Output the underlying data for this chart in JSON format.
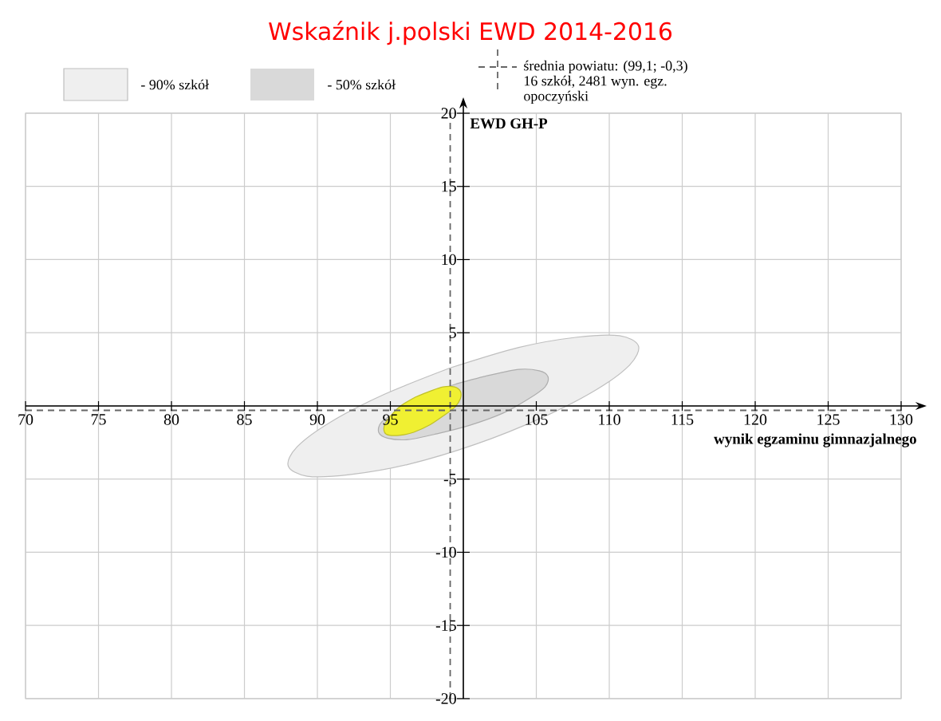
{
  "chart_data": {
    "type": "area",
    "title": "Wskaźnik j.polski EWD 2014-2016",
    "xlabel": "wynik egzaminu gimnazjalnego",
    "ylabel": "EWD GH-P",
    "series": [
      {
        "name": "- 90% szkół",
        "color": "#efefef",
        "x": [
          99.1,
          94.6,
          90.9,
          88.6,
          88.0,
          89.3,
          92.2,
          96.2,
          100.9,
          105.4,
          109.1,
          111.4,
          112.0,
          110.7,
          107.8,
          103.8
        ],
        "values": [
          2.6,
          0.8,
          -1.1,
          -2.8,
          -4.1,
          -4.8,
          -4.7,
          -4.0,
          -2.6,
          -0.8,
          1.1,
          2.8,
          4.1,
          4.8,
          4.7,
          4.0
        ]
      },
      {
        "name": "- 50% szkół",
        "color": "#d9d9d9",
        "x": [
          99.5,
          97.3,
          95.6,
          94.4,
          94.2,
          94.8,
          96.2,
          98.2,
          100.5,
          102.7,
          104.5,
          105.6,
          105.8,
          105.2,
          103.8,
          101.8
        ],
        "values": [
          1.5,
          0.7,
          -0.3,
          -1.1,
          -1.8,
          -2.2,
          -2.3,
          -1.9,
          -1.3,
          -0.5,
          0.5,
          1.3,
          2.0,
          2.4,
          2.5,
          2.1
        ]
      },
      {
        "color": "#f0f032",
        "x": [
          96.7,
          95.7,
          95.0,
          94.6,
          94.6,
          94.9,
          95.7,
          96.6,
          97.7,
          98.6,
          99.4,
          99.8,
          99.8,
          99.4,
          98.6,
          97.7
        ],
        "values": [
          0.6,
          0.0,
          -0.7,
          -1.3,
          -1.8,
          -2.0,
          -2.0,
          -1.8,
          -1.3,
          -0.7,
          -0.1,
          0.5,
          1.0,
          1.3,
          1.3,
          1.0
        ]
      }
    ],
    "xlim": [
      70,
      130
    ],
    "ylim": [
      -20,
      20
    ],
    "xticks": [
      70,
      75,
      80,
      85,
      90,
      95,
      {
        "value": 100,
        "label": null
      },
      105,
      110,
      115,
      120,
      125,
      130
    ],
    "yticks": [
      -20,
      -15,
      -10,
      -5,
      {
        "value": 0,
        "label": null
      },
      5,
      10,
      15,
      20
    ],
    "grid": true,
    "legend": "top",
    "ref_lines": [
      {
        "axis": "x",
        "value": 99.1,
        "label": "średnia powiatu: (99,1; -0,3)",
        "line_style": "dashed",
        "color": "#666666"
      },
      {
        "axis": "y",
        "value": -0.3,
        "line_style": "dashed",
        "color": "#666666"
      }
    ],
    "annotations": [
      "16 szkół, 2481 wyn. egz.",
      "opoczyński"
    ]
  }
}
